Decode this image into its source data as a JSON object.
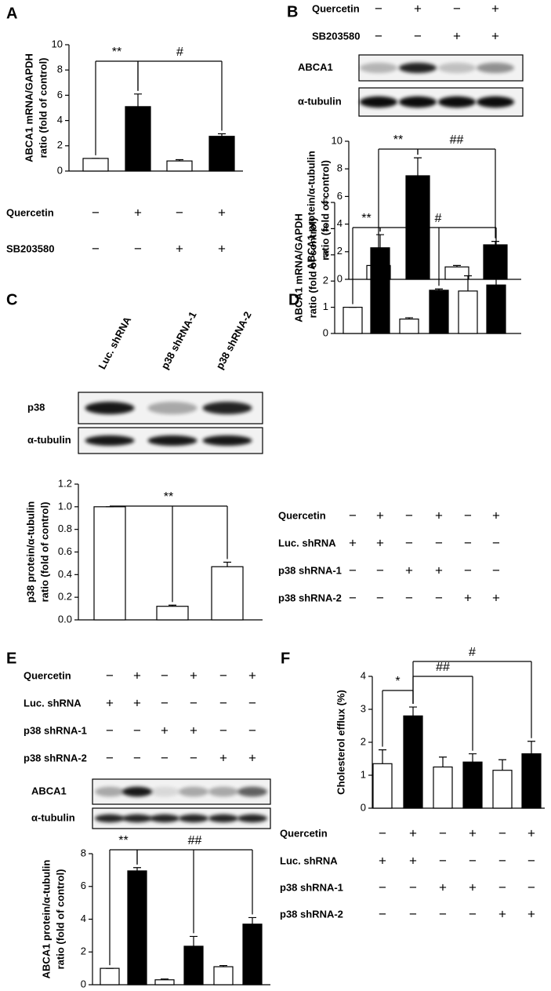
{
  "chart_data": [
    {
      "type": "bar",
      "panel": "A",
      "y_label": [
        "ABCA1 mRNA/GAPDH",
        "ratio (fold of control)"
      ],
      "values": [
        1,
        5.1,
        0.8,
        2.75
      ],
      "errors": [
        0,
        1.0,
        0.1,
        0.2
      ],
      "colors": [
        "#ffffff",
        "#000000",
        "#ffffff",
        "#000000"
      ],
      "ylim": [
        0,
        10
      ],
      "yticks": [
        0,
        2,
        4,
        6,
        8,
        10
      ],
      "annotations": [
        "**",
        "#"
      ],
      "conditions": [
        {
          "name": "Quercetin",
          "signs": [
            "−",
            "+",
            "−",
            "+"
          ]
        },
        {
          "name": "SB203580",
          "signs": [
            "−",
            "−",
            "+",
            "+"
          ]
        }
      ]
    },
    {
      "type": "bar",
      "panel": "B",
      "y_label": [
        "ABCA1 protein/α-tubulin",
        "ratio (fold of control)"
      ],
      "values": [
        1,
        7.5,
        0.9,
        2.5
      ],
      "errors": [
        0,
        1.3,
        0.1,
        0.25
      ],
      "colors": [
        "#ffffff",
        "#000000",
        "#ffffff",
        "#000000"
      ],
      "ylim": [
        0,
        10
      ],
      "yticks": [
        0,
        2,
        4,
        6,
        8,
        10
      ],
      "annotations": [
        "**",
        "##"
      ],
      "conditions": [
        {
          "name": "Quercetin",
          "signs": [
            "−",
            "+",
            "−",
            "+"
          ]
        },
        {
          "name": "SB203580",
          "signs": [
            "−",
            "−",
            "+",
            "+"
          ]
        }
      ],
      "blot": {
        "rows": [
          "ABCA1",
          "α-tubulin"
        ]
      }
    },
    {
      "type": "bar",
      "panel": "C",
      "y_label": [
        "p38 protein/α-tubulin",
        "ratio (fold of control)"
      ],
      "values": [
        1.0,
        0.12,
        0.47
      ],
      "errors": [
        0,
        0.01,
        0.04
      ],
      "colors": [
        "#ffffff",
        "#ffffff",
        "#ffffff"
      ],
      "ylim": [
        0,
        1.2
      ],
      "yticks": [
        {
          "value": 0,
          "label": "0.0"
        },
        0.2,
        0.4,
        0.6,
        0.8,
        {
          "value": 1,
          "label": "1.0"
        },
        1.2
      ],
      "annotations": [
        "**"
      ],
      "blot": {
        "lanes": [
          "Luc. shRNA",
          "p38 shRNA-1",
          "p38 shRNA-2"
        ],
        "rows": [
          "p38",
          "α-tubulin"
        ]
      }
    },
    {
      "type": "bar",
      "panel": "D",
      "y_label": [
        "ABCA1 mRNA/GAPDH",
        "ratio (fold of control)"
      ],
      "values": [
        1,
        3.27,
        0.55,
        1.65,
        1.62,
        1.85
      ],
      "errors": [
        0,
        0.5,
        0.05,
        0.05,
        0.58,
        0.25
      ],
      "colors": [
        "#ffffff",
        "#000000",
        "#ffffff",
        "#000000",
        "#ffffff",
        "#000000"
      ],
      "ylim": [
        0,
        5
      ],
      "yticks": [
        0,
        1,
        2,
        3,
        4,
        5
      ],
      "annotations": [
        "**",
        "#"
      ],
      "conditions": [
        {
          "name": "Quercetin",
          "signs": [
            "−",
            "+",
            "−",
            "+",
            "−",
            "+"
          ]
        },
        {
          "name": "Luc. shRNA",
          "signs": [
            "+",
            "+",
            "−",
            "−",
            "−",
            "−"
          ]
        },
        {
          "name": "p38 shRNA-1",
          "signs": [
            "−",
            "−",
            "+",
            "+",
            "−",
            "−"
          ]
        },
        {
          "name": "p38 shRNA-2",
          "signs": [
            "−",
            "−",
            "−",
            "−",
            "+",
            "+"
          ]
        }
      ]
    },
    {
      "type": "bar",
      "panel": "E",
      "y_label": [
        "ABCA1 protein/α-tubulin",
        "ratio (fold of control)"
      ],
      "values": [
        1,
        6.95,
        0.3,
        2.35,
        1.1,
        3.7
      ],
      "errors": [
        0,
        0.2,
        0.05,
        0.6,
        0.07,
        0.4
      ],
      "colors": [
        "#ffffff",
        "#000000",
        "#ffffff",
        "#000000",
        "#ffffff",
        "#000000"
      ],
      "ylim": [
        0,
        8
      ],
      "yticks": [
        0,
        2,
        4,
        6,
        8
      ],
      "annotations": [
        "**",
        "##"
      ],
      "conditions": [
        {
          "name": "Quercetin",
          "signs": [
            "−",
            "+",
            "−",
            "+",
            "−",
            "+"
          ]
        },
        {
          "name": "Luc. shRNA",
          "signs": [
            "+",
            "+",
            "−",
            "−",
            "−",
            "−"
          ]
        },
        {
          "name": "p38 shRNA-1",
          "signs": [
            "−",
            "−",
            "+",
            "+",
            "−",
            "−"
          ]
        },
        {
          "name": "p38 shRNA-2",
          "signs": [
            "−",
            "−",
            "−",
            "−",
            "+",
            "+"
          ]
        }
      ],
      "blot": {
        "rows": [
          "ABCA1",
          "α-tubulin"
        ]
      }
    },
    {
      "type": "bar",
      "panel": "F",
      "y_label": [
        "Cholesterol efflux (%)"
      ],
      "values": [
        1.35,
        2.8,
        1.25,
        1.4,
        1.15,
        1.65
      ],
      "errors": [
        0.42,
        0.27,
        0.3,
        0.25,
        0.32,
        0.38
      ],
      "colors": [
        "#ffffff",
        "#000000",
        "#ffffff",
        "#000000",
        "#ffffff",
        "#000000"
      ],
      "ylim": [
        0,
        4
      ],
      "yticks": [
        0,
        1,
        2,
        3,
        4
      ],
      "annotations": [
        "*",
        "##",
        "#"
      ],
      "conditions": [
        {
          "name": "Quercetin",
          "signs": [
            "−",
            "+",
            "−",
            "+",
            "−",
            "+"
          ]
        },
        {
          "name": "Luc. shRNA",
          "signs": [
            "+",
            "+",
            "−",
            "−",
            "−",
            "−"
          ]
        },
        {
          "name": "p38 shRNA-1",
          "signs": [
            "−",
            "−",
            "+",
            "+",
            "−",
            "−"
          ]
        },
        {
          "name": "p38 shRNA-2",
          "signs": [
            "−",
            "−",
            "−",
            "−",
            "+",
            "+"
          ]
        }
      ]
    }
  ]
}
